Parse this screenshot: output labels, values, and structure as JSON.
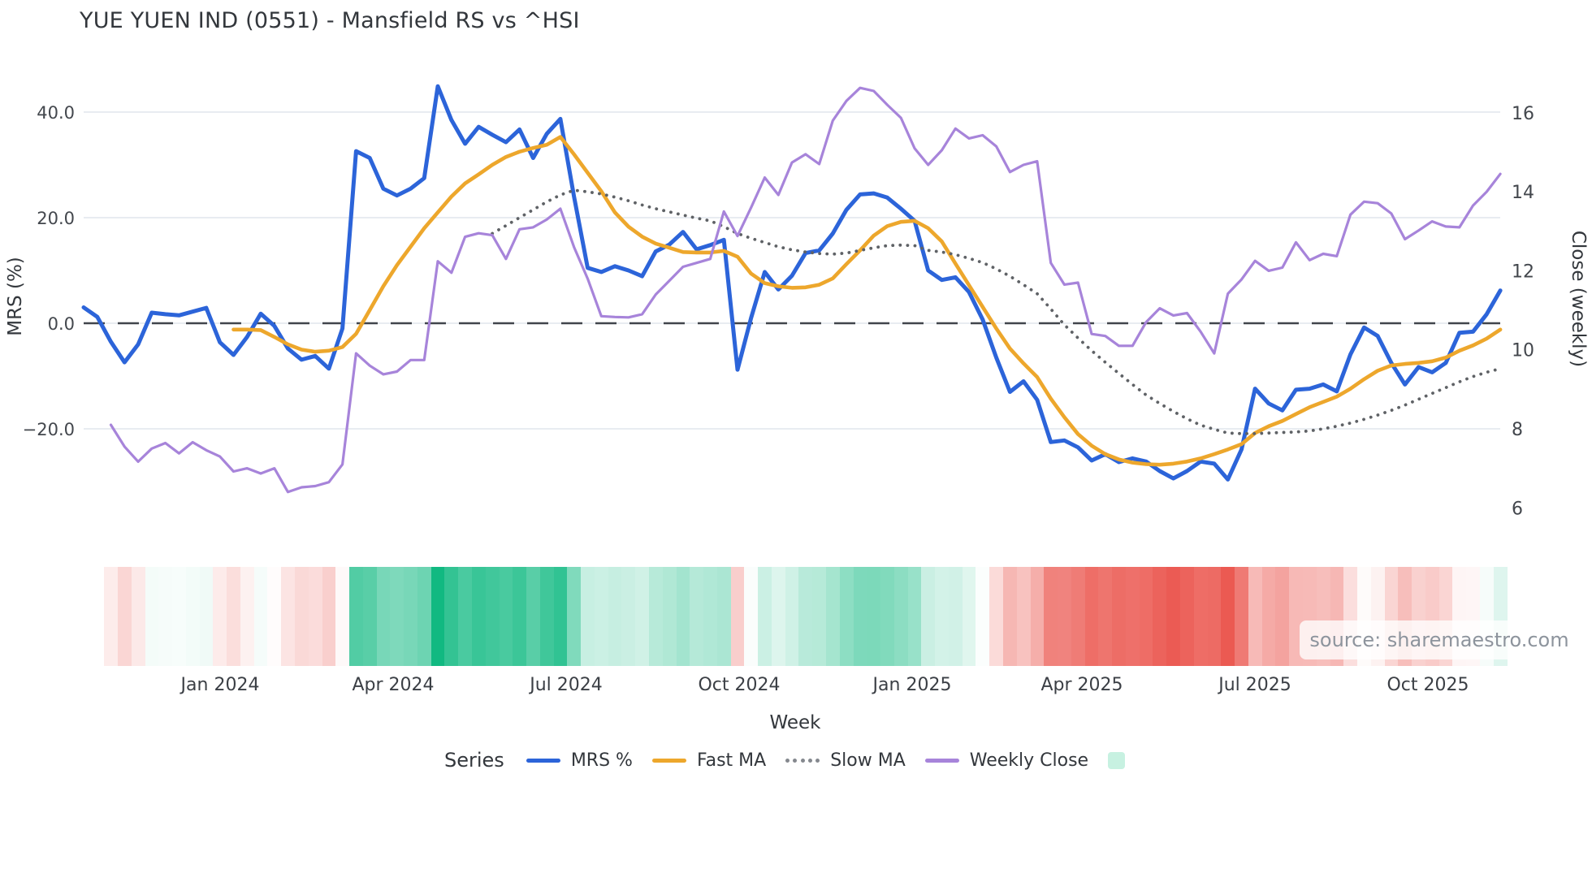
{
  "title": "YUE YUEN IND (0551) - Mansfield RS vs ^HSI",
  "watermark": "source: sharemaestro.com",
  "axes": {
    "left": {
      "title": "MRS (%)",
      "ticks": [
        {
          "label": "40.0",
          "value": 40
        },
        {
          "label": "20.0",
          "value": 20
        },
        {
          "label": "0.0",
          "value": 0
        },
        {
          "label": "−20.0",
          "value": -20
        }
      ]
    },
    "right": {
      "title": "Close (weekly)",
      "ticks": [
        {
          "label": "16",
          "value": 16
        },
        {
          "label": "14",
          "value": 14
        },
        {
          "label": "12",
          "value": 12
        },
        {
          "label": "10",
          "value": 10
        },
        {
          "label": "8",
          "value": 8
        },
        {
          "label": "6",
          "value": 6
        }
      ]
    },
    "x": {
      "title": "Week",
      "ticks": [
        {
          "label": "Jan 2024",
          "week": 10.0
        },
        {
          "label": "Apr 2024",
          "week": 22.7
        },
        {
          "label": "Jul 2024",
          "week": 35.4
        },
        {
          "label": "Oct 2024",
          "week": 48.1
        },
        {
          "label": "Jan 2025",
          "week": 60.8
        },
        {
          "label": "Apr 2025",
          "week": 73.3
        },
        {
          "label": "Jul 2025",
          "week": 86.0
        },
        {
          "label": "Oct 2025",
          "week": 98.7
        }
      ]
    }
  },
  "legend": {
    "title": "Series",
    "items": [
      {
        "id": "mrs",
        "label": "MRS %",
        "swatch": "line",
        "color": "#2c64d9"
      },
      {
        "id": "fast-ma",
        "label": "Fast MA",
        "swatch": "line",
        "color": "#eda72c"
      },
      {
        "id": "slow-ma",
        "label": "Slow MA",
        "swatch": "dots",
        "color": "#84888e"
      },
      {
        "id": "weekly-close",
        "label": "Weekly Close",
        "swatch": "line",
        "color": "#a784da"
      },
      {
        "id": "heatmap",
        "label": "",
        "swatch": "square",
        "color": "#c7f1e1"
      }
    ]
  },
  "chart_data": {
    "type": "line",
    "x_unit": "week_index",
    "n_weeks": 105,
    "ylim_left": [
      -40,
      48
    ],
    "ylim_right": [
      5.3,
      17.1
    ],
    "grid": "horizontal-only",
    "zero_line": {
      "value": 0,
      "style": "dashed",
      "color": "#41454b"
    },
    "series": [
      {
        "name": "MRS %",
        "axis": "left",
        "style": "solid",
        "color": "#2c64d9",
        "width": 5,
        "values": [
          3.0,
          1.2,
          -3.5,
          -7.4,
          -4.0,
          2.0,
          1.7,
          1.5,
          2.2,
          2.9,
          -3.6,
          -6.0,
          -2.6,
          1.8,
          -0.5,
          -4.8,
          -6.9,
          -6.2,
          -8.6,
          -1.0,
          32.6,
          31.3,
          25.5,
          24.2,
          25.5,
          27.5,
          44.9,
          38.5,
          34.0,
          37.2,
          35.7,
          34.3,
          36.7,
          31.3,
          35.9,
          38.7,
          24.0,
          10.5,
          9.7,
          10.8,
          10.0,
          8.9,
          13.6,
          14.9,
          17.3,
          14.0,
          14.8,
          15.8,
          -8.8,
          1.0,
          9.7,
          6.4,
          9.0,
          13.3,
          13.8,
          17.0,
          21.5,
          24.4,
          24.6,
          23.8,
          21.7,
          19.4,
          10.0,
          8.2,
          8.7,
          5.9,
          0.7,
          -6.5,
          -13.0,
          -11.0,
          -14.5,
          -22.5,
          -22.2,
          -23.5,
          -26.0,
          -24.8,
          -26.3,
          -25.6,
          -26.2,
          -28.0,
          -29.4,
          -28.0,
          -26.2,
          -26.6,
          -29.6,
          -23.9,
          -12.4,
          -15.2,
          -16.5,
          -12.6,
          -12.4,
          -11.6,
          -12.9,
          -5.9,
          -0.8,
          -2.4,
          -7.5,
          -11.6,
          -8.3,
          -9.3,
          -7.5,
          -1.8,
          -1.6,
          1.7,
          6.2
        ]
      },
      {
        "name": "Fast MA",
        "axis": "left",
        "style": "solid",
        "color": "#eda72c",
        "width": 4.6,
        "values": [
          null,
          null,
          null,
          null,
          null,
          null,
          null,
          null,
          null,
          null,
          null,
          -1.2,
          -1.2,
          -1.3,
          -2.6,
          -4.0,
          -5.0,
          -5.4,
          -5.2,
          -4.5,
          -2.0,
          2.5,
          7.0,
          11.0,
          14.5,
          18.0,
          21.0,
          24.0,
          26.5,
          28.2,
          30.0,
          31.5,
          32.5,
          33.2,
          33.8,
          35.3,
          32.0,
          28.5,
          25.0,
          21.0,
          18.3,
          16.4,
          15.1,
          14.3,
          13.5,
          13.4,
          13.4,
          13.7,
          12.6,
          9.4,
          7.6,
          7.0,
          6.7,
          6.8,
          7.3,
          8.5,
          11.2,
          13.8,
          16.6,
          18.4,
          19.2,
          19.4,
          18.0,
          15.5,
          11.3,
          7.2,
          3.1,
          -1.0,
          -4.8,
          -7.6,
          -10.2,
          -14.3,
          -17.8,
          -21.0,
          -23.2,
          -24.8,
          -25.8,
          -26.4,
          -26.7,
          -26.8,
          -26.6,
          -26.2,
          -25.6,
          -24.8,
          -23.9,
          -22.9,
          -20.8,
          -19.5,
          -18.5,
          -17.2,
          -15.9,
          -14.9,
          -13.9,
          -12.4,
          -10.6,
          -9.0,
          -8.0,
          -7.7,
          -7.5,
          -7.2,
          -6.5,
          -5.2,
          -4.2,
          -2.9,
          -1.2
        ]
      },
      {
        "name": "Slow MA",
        "axis": "left",
        "style": "dotted",
        "color": "#5f6266",
        "width": 3.8,
        "values": [
          null,
          null,
          null,
          null,
          null,
          null,
          null,
          null,
          null,
          null,
          null,
          null,
          null,
          null,
          null,
          null,
          null,
          null,
          null,
          null,
          null,
          null,
          null,
          null,
          null,
          null,
          null,
          null,
          null,
          null,
          17.0,
          18.5,
          20.0,
          21.5,
          23.0,
          24.3,
          25.2,
          24.9,
          24.5,
          23.9,
          23.2,
          22.4,
          21.7,
          21.1,
          20.5,
          19.9,
          19.4,
          18.3,
          17.0,
          16.1,
          15.3,
          14.5,
          13.9,
          13.5,
          13.2,
          13.1,
          13.3,
          13.8,
          14.3,
          14.7,
          14.8,
          14.7,
          13.8,
          13.5,
          13.0,
          12.3,
          11.5,
          10.3,
          8.9,
          7.3,
          5.6,
          2.7,
          -0.3,
          -2.8,
          -5.2,
          -7.4,
          -9.5,
          -11.6,
          -13.6,
          -15.2,
          -16.7,
          -18.1,
          -19.3,
          -20.1,
          -20.8,
          -20.9,
          -20.9,
          -20.8,
          -20.7,
          -20.6,
          -20.4,
          -20.0,
          -19.5,
          -18.9,
          -18.2,
          -17.4,
          -16.5,
          -15.5,
          -14.4,
          -13.3,
          -12.2,
          -11.1,
          -10.1,
          -9.3,
          -8.6
        ]
      },
      {
        "name": "Weekly Close",
        "axis": "right",
        "style": "solid",
        "color": "#a784da",
        "width": 3.2,
        "values": [
          null,
          null,
          8.1,
          7.55,
          7.17,
          7.5,
          7.64,
          7.38,
          7.66,
          7.46,
          7.3,
          6.92,
          7.0,
          6.87,
          7.0,
          6.4,
          6.52,
          6.55,
          6.65,
          7.1,
          9.91,
          9.6,
          9.38,
          9.45,
          9.74,
          9.74,
          12.24,
          11.95,
          12.86,
          12.95,
          12.9,
          12.3,
          13.05,
          13.1,
          13.3,
          13.57,
          12.6,
          11.8,
          10.85,
          10.83,
          10.82,
          10.9,
          11.4,
          11.75,
          12.1,
          12.2,
          12.3,
          13.5,
          12.88,
          13.6,
          14.36,
          13.92,
          14.74,
          14.95,
          14.7,
          15.8,
          16.3,
          16.63,
          16.55,
          16.2,
          15.87,
          15.1,
          14.68,
          15.05,
          15.6,
          15.35,
          15.43,
          15.15,
          14.5,
          14.68,
          14.77,
          12.2,
          11.65,
          11.7,
          10.4,
          10.35,
          10.1,
          10.1,
          10.7,
          11.05,
          10.87,
          10.93,
          10.46,
          9.91,
          11.42,
          11.78,
          12.25,
          12.0,
          12.08,
          12.72,
          12.27,
          12.43,
          12.37,
          13.42,
          13.75,
          13.71,
          13.45,
          12.8,
          13.02,
          13.25,
          13.12,
          13.1,
          13.65,
          14.0,
          14.45
        ]
      }
    ],
    "heatmap": {
      "source_series": "MRS %",
      "first_week": 2,
      "positive_color": "#10b981",
      "negative_color": "#eb5850",
      "positive_full_at": 45,
      "negative_full_at": 30
    }
  }
}
